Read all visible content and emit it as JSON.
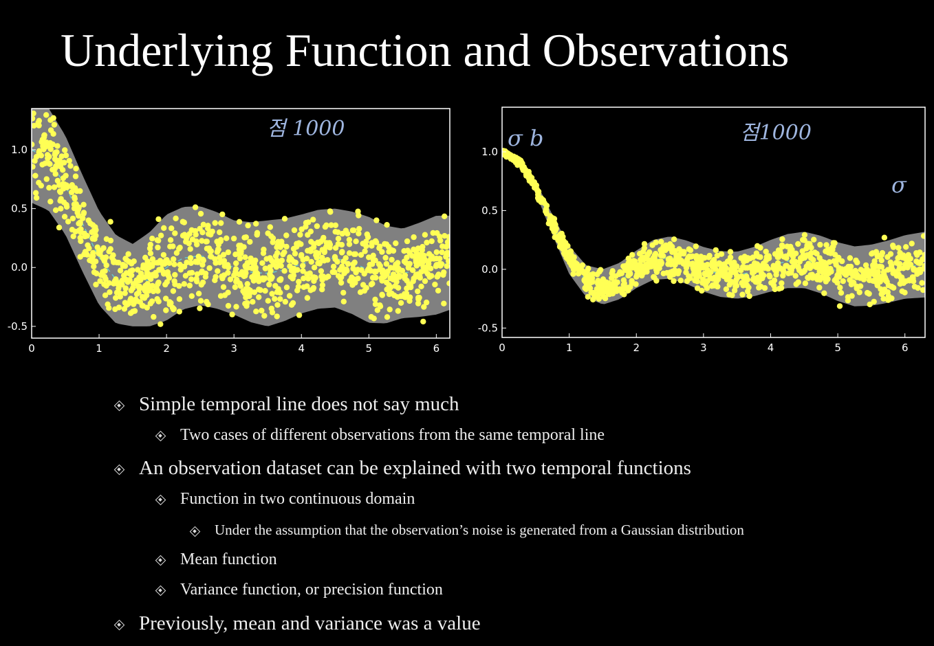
{
  "title": "Underlying Function and Observations",
  "handwriting": {
    "left_top": "점 1000",
    "right_top": "점1000",
    "right_corner": "σ b",
    "right_edge": "σ"
  },
  "colors": {
    "band": "#808080",
    "points": "#ffff55",
    "mean_line": "#66cccc",
    "background": "#000000"
  },
  "chart_data": [
    {
      "type": "scatter",
      "xlim": [
        0,
        6.2
      ],
      "ylim": [
        -0.6,
        1.35
      ],
      "xticks": [
        "0",
        "1",
        "2",
        "3",
        "4",
        "5",
        "6"
      ],
      "yticks": [
        "1.0",
        "0.5",
        "0.0",
        "-0.5"
      ],
      "mean_function": {
        "x": [
          0,
          0.25,
          0.5,
          0.75,
          1.0,
          1.25,
          1.5,
          1.75,
          2.0,
          2.25,
          2.5,
          2.75,
          3.0,
          3.25,
          3.5,
          3.75,
          4.0,
          4.25,
          4.5,
          4.75,
          5.0,
          5.25,
          5.5,
          5.75,
          6.0,
          6.2
        ],
        "y": [
          1.0,
          0.92,
          0.7,
          0.38,
          0.08,
          -0.1,
          -0.15,
          -0.1,
          0.0,
          0.08,
          0.1,
          0.06,
          0.0,
          -0.04,
          -0.05,
          -0.02,
          0.03,
          0.07,
          0.08,
          0.04,
          -0.02,
          -0.06,
          -0.05,
          -0.02,
          0.02,
          0.04
        ]
      },
      "band_halfwidth": {
        "x": [
          0,
          0.5,
          1.0,
          1.5,
          2.0,
          2.5,
          3.0,
          3.5,
          4.0,
          4.5,
          5.0,
          5.5,
          6.0,
          6.2
        ],
        "y": [
          0.45,
          0.42,
          0.4,
          0.35,
          0.45,
          0.42,
          0.4,
          0.45,
          0.42,
          0.42,
          0.45,
          0.38,
          0.42,
          0.4
        ]
      },
      "observations": {
        "count": 1000
      }
    },
    {
      "type": "scatter",
      "xlim": [
        0,
        6.3
      ],
      "ylim": [
        -0.58,
        1.38
      ],
      "xticks": [
        "0",
        "1",
        "2",
        "3",
        "4",
        "5",
        "6"
      ],
      "yticks": [
        "1.0",
        "0.5",
        "0.0",
        "-0.5"
      ],
      "mean_function": {
        "x": [
          0,
          0.25,
          0.5,
          0.75,
          1.0,
          1.25,
          1.5,
          1.75,
          2.0,
          2.25,
          2.5,
          2.75,
          3.0,
          3.25,
          3.5,
          3.75,
          4.0,
          4.25,
          4.5,
          4.75,
          5.0,
          5.25,
          5.5,
          5.75,
          6.0,
          6.3
        ],
        "y": [
          1.0,
          0.92,
          0.7,
          0.38,
          0.08,
          -0.1,
          -0.15,
          -0.1,
          0.0,
          0.08,
          0.1,
          0.06,
          0.0,
          -0.04,
          -0.05,
          -0.02,
          0.03,
          0.07,
          0.08,
          0.04,
          -0.02,
          -0.06,
          -0.05,
          -0.02,
          0.02,
          0.04
        ]
      },
      "band_halfwidth": {
        "x": [
          0,
          0.5,
          1.0,
          1.5,
          2.0,
          2.5,
          3.0,
          3.5,
          4.0,
          4.5,
          5.0,
          5.5,
          6.0,
          6.3
        ],
        "y": [
          0.03,
          0.05,
          0.12,
          0.15,
          0.16,
          0.18,
          0.19,
          0.2,
          0.22,
          0.24,
          0.25,
          0.26,
          0.27,
          0.28
        ]
      },
      "observations": {
        "count": 1000
      }
    }
  ],
  "bullets": [
    {
      "level": 1,
      "text": "Simple temporal line does not say much"
    },
    {
      "level": 2,
      "text": "Two cases of different observations from the same temporal line"
    },
    {
      "level": 1,
      "text": "An observation dataset can be explained with two temporal functions"
    },
    {
      "level": 2,
      "text": "Function in two continuous domain"
    },
    {
      "level": 3,
      "text": "Under the assumption that the observation’s noise is generated from a Gaussian distribution"
    },
    {
      "level": 2,
      "text": "Mean function"
    },
    {
      "level": 2,
      "text": "Variance function, or precision function"
    },
    {
      "level": 1,
      "text": "Previously, mean and variance was a value"
    }
  ]
}
